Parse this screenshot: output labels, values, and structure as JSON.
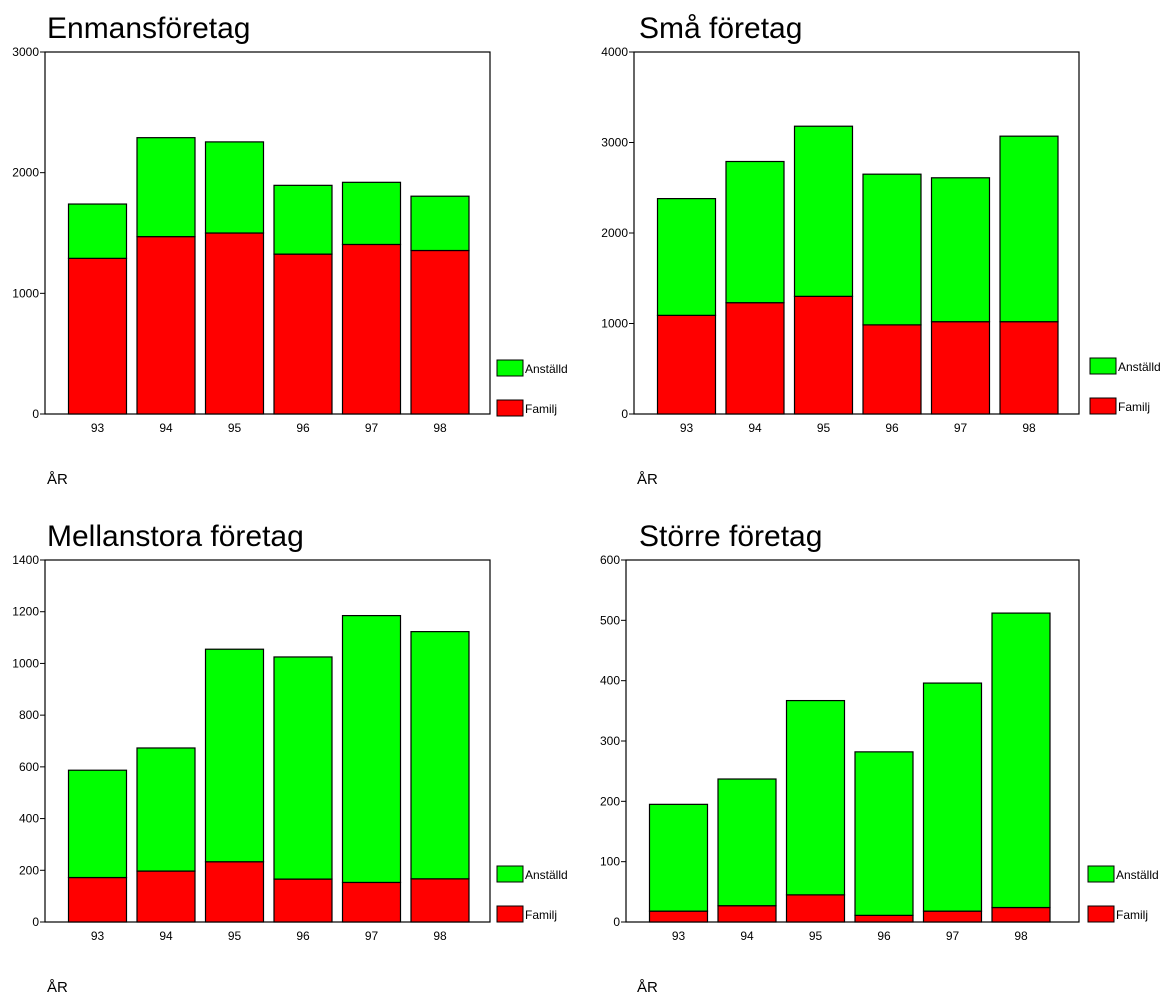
{
  "colors": {
    "familj": "#ff0000",
    "anstalld": "#00ff00",
    "stroke": "#000000"
  },
  "chart_data": [
    {
      "type": "bar",
      "stacked": true,
      "title": "Enmansföretag",
      "xlabel": "ÅR",
      "categories": [
        "93",
        "94",
        "95",
        "96",
        "97",
        "98"
      ],
      "yticks": [
        "0",
        "1000",
        "2000",
        "3000"
      ],
      "ylim": [
        0,
        3000
      ],
      "series": [
        {
          "name": "Familj",
          "values": [
            1290,
            1470,
            1500,
            1325,
            1405,
            1355
          ]
        },
        {
          "name": "Anställd",
          "values": [
            450,
            820,
            755,
            570,
            515,
            450
          ]
        }
      ],
      "legend": [
        "Anställd",
        "Familj"
      ],
      "legend_position": "right-bottom"
    },
    {
      "type": "bar",
      "stacked": true,
      "title": "Små företag",
      "xlabel": "ÅR",
      "categories": [
        "93",
        "94",
        "95",
        "96",
        "97",
        "98"
      ],
      "yticks": [
        "0",
        "1000",
        "2000",
        "3000",
        "4000"
      ],
      "ylim": [
        0,
        4000
      ],
      "series": [
        {
          "name": "Familj",
          "values": [
            1090,
            1230,
            1300,
            985,
            1020,
            1020
          ]
        },
        {
          "name": "Anställd",
          "values": [
            1290,
            1560,
            1880,
            1665,
            1590,
            2050
          ]
        }
      ],
      "legend": [
        "Anställd",
        "Familj"
      ],
      "legend_position": "right-bottom"
    },
    {
      "type": "bar",
      "stacked": true,
      "title": "Mellanstora företag",
      "xlabel": "ÅR",
      "categories": [
        "93",
        "94",
        "95",
        "96",
        "97",
        "98"
      ],
      "yticks": [
        "0",
        "200",
        "400",
        "600",
        "800",
        "1000",
        "1200",
        "1400"
      ],
      "ylim": [
        0,
        1400
      ],
      "series": [
        {
          "name": "Familj",
          "values": [
            172,
            197,
            233,
            166,
            153,
            167
          ]
        },
        {
          "name": "Anställd",
          "values": [
            415,
            476,
            822,
            859,
            1032,
            956
          ]
        }
      ],
      "legend": [
        "Anställd",
        "Familj"
      ],
      "legend_position": "right-bottom"
    },
    {
      "type": "bar",
      "stacked": true,
      "title": "Större företag",
      "xlabel": "ÅR",
      "categories": [
        "93",
        "94",
        "95",
        "96",
        "97",
        "98"
      ],
      "yticks": [
        "0",
        "100",
        "200",
        "300",
        "400",
        "500",
        "600"
      ],
      "ylim": [
        0,
        600
      ],
      "series": [
        {
          "name": "Familj",
          "values": [
            18,
            27,
            45,
            11,
            18,
            24
          ]
        },
        {
          "name": "Anställd",
          "values": [
            177,
            210,
            322,
            271,
            378,
            488
          ]
        }
      ],
      "legend": [
        "Anställd",
        "Familj"
      ],
      "legend_position": "right-bottom"
    }
  ]
}
